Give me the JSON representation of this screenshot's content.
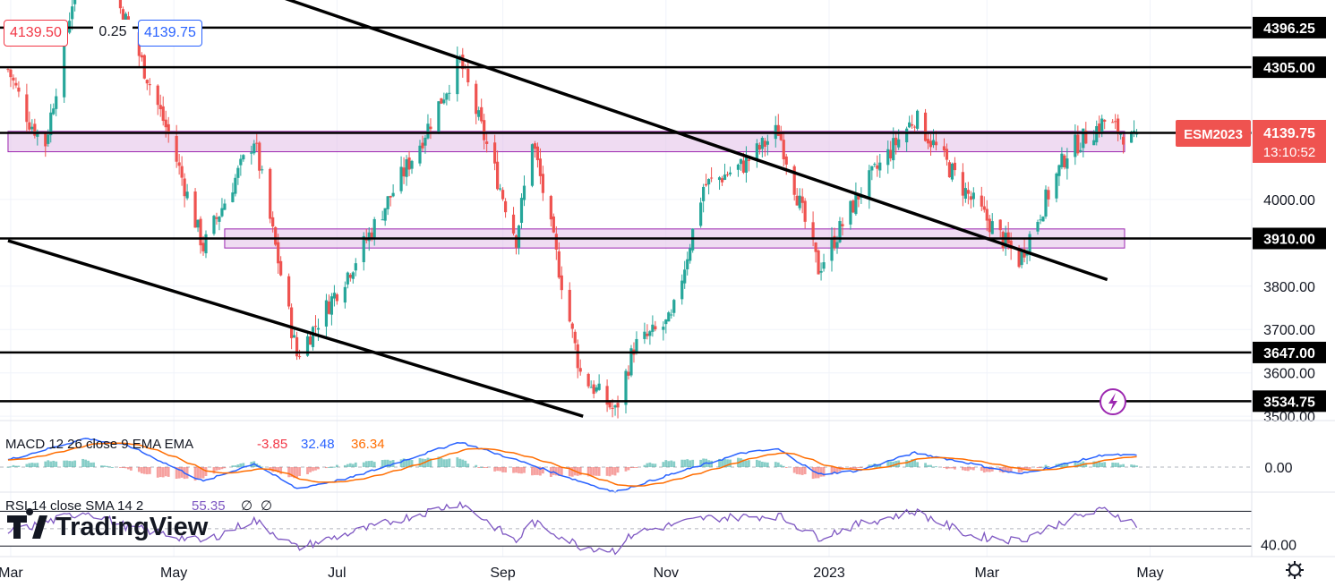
{
  "header": {
    "sell_price": "4139.50",
    "spread": "0.25",
    "buy_price": "4139.75"
  },
  "symbol_tag": {
    "label": "ESM2023",
    "price": "4139.75",
    "countdown": "13:10:52"
  },
  "colors": {
    "up": "#26a69a",
    "down": "#ef5350",
    "zone_fill": "#e1bee7",
    "zone_border": "#9c27b0",
    "tag_bg": "#ef5350",
    "macd_line": "#2962ff",
    "signal_line": "#ff6d00",
    "rsi_line": "#7e57c2"
  },
  "brand": {
    "name": "TradingView"
  },
  "chart_data": {
    "type": "candlestick",
    "price_axis": {
      "range": [
        3490,
        4460
      ],
      "ticks": [
        "4000.00",
        "3800.00",
        "3700.00",
        "3600.00",
        "3500.00"
      ]
    },
    "levels": [
      {
        "label": "4396.25",
        "value": 4396.25
      },
      {
        "label": "4305.00",
        "value": 4305.0
      },
      {
        "label": "4153.50",
        "value": 4153.5
      },
      {
        "label": "3910.00",
        "value": 3910.0
      },
      {
        "label": "3647.00",
        "value": 3647.0
      },
      {
        "label": "3534.75",
        "value": 3534.75
      }
    ],
    "zones": [
      {
        "from": 4110,
        "to": 4157,
        "start": "2022-02-28",
        "end": "2023-04-30"
      },
      {
        "from": 3888,
        "to": 3932,
        "start": "2022-05-20",
        "end": "2023-04-30"
      }
    ],
    "trendlines": [
      {
        "start": [
          "2022-04-15",
          4585
        ],
        "end": [
          "2023-04-15",
          3815
        ]
      },
      {
        "start": [
          "2022-02-28",
          3905
        ],
        "end": [
          "2022-10-01",
          3500
        ]
      }
    ],
    "time_axis": [
      "Mar",
      "May",
      "Jul",
      "Sep",
      "Nov",
      "2023",
      "Mar",
      "May"
    ],
    "price_path": [
      [
        "2022-02-28",
        4300
      ],
      [
        "2022-03-08",
        4180
      ],
      [
        "2022-03-14",
        4130
      ],
      [
        "2022-03-29",
        4620
      ],
      [
        "2022-04-14",
        4400
      ],
      [
        "2022-04-29",
        4150
      ],
      [
        "2022-05-12",
        3890
      ],
      [
        "2022-05-31",
        4140
      ],
      [
        "2022-06-16",
        3640
      ],
      [
        "2022-07-06",
        3840
      ],
      [
        "2022-08-01",
        4130
      ],
      [
        "2022-08-16",
        4320
      ],
      [
        "2022-09-06",
        3910
      ],
      [
        "2022-09-12",
        4140
      ],
      [
        "2022-09-30",
        3600
      ],
      [
        "2022-10-13",
        3510
      ],
      [
        "2022-10-20",
        3660
      ],
      [
        "2022-11-03",
        3720
      ],
      [
        "2022-11-15",
        4030
      ],
      [
        "2022-11-30",
        4080
      ],
      [
        "2022-12-13",
        4160
      ],
      [
        "2022-12-28",
        3840
      ],
      [
        "2023-01-12",
        4010
      ],
      [
        "2023-02-02",
        4190
      ],
      [
        "2023-02-23",
        4000
      ],
      [
        "2023-03-13",
        3860
      ],
      [
        "2023-03-31",
        4110
      ],
      [
        "2023-04-14",
        4180
      ],
      [
        "2023-04-26",
        4130
      ]
    ],
    "macd": {
      "label": "MACD 12 26 close 9 EMA EMA",
      "histogram": "-3.85",
      "macd": "32.48",
      "signal": "36.34",
      "axis_tick": "0.00",
      "range": [
        -60,
        120
      ],
      "path": [
        [
          "2022-02-28",
          20
        ],
        [
          "2022-03-29",
          80
        ],
        [
          "2022-04-14",
          60
        ],
        [
          "2022-05-12",
          -40
        ],
        [
          "2022-05-31",
          10
        ],
        [
          "2022-06-16",
          -60
        ],
        [
          "2022-07-06",
          -30
        ],
        [
          "2022-08-16",
          70
        ],
        [
          "2022-09-06",
          20
        ],
        [
          "2022-09-30",
          -40
        ],
        [
          "2022-10-13",
          -70
        ],
        [
          "2022-11-03",
          -20
        ],
        [
          "2022-11-30",
          40
        ],
        [
          "2022-12-13",
          50
        ],
        [
          "2022-12-28",
          -20
        ],
        [
          "2023-01-12",
          -10
        ],
        [
          "2023-02-02",
          40
        ],
        [
          "2023-02-23",
          10
        ],
        [
          "2023-03-13",
          -20
        ],
        [
          "2023-03-31",
          10
        ],
        [
          "2023-04-14",
          35
        ],
        [
          "2023-04-26",
          32
        ]
      ]
    },
    "rsi": {
      "label": "RSI 14 close SMA 14 2",
      "value": "55.35",
      "extra": [
        "∅",
        "∅"
      ],
      "axis_tick": "40.00",
      "range": [
        20,
        90
      ],
      "path": [
        [
          "2022-02-28",
          45
        ],
        [
          "2022-03-29",
          70
        ],
        [
          "2022-04-14",
          52
        ],
        [
          "2022-05-12",
          35
        ],
        [
          "2022-05-31",
          60
        ],
        [
          "2022-06-16",
          28
        ],
        [
          "2022-07-06",
          45
        ],
        [
          "2022-08-16",
          80
        ],
        [
          "2022-09-06",
          35
        ],
        [
          "2022-09-12",
          58
        ],
        [
          "2022-09-30",
          30
        ],
        [
          "2022-10-13",
          25
        ],
        [
          "2022-10-20",
          45
        ],
        [
          "2022-11-15",
          62
        ],
        [
          "2022-12-13",
          65
        ],
        [
          "2022-12-28",
          40
        ],
        [
          "2023-01-12",
          55
        ],
        [
          "2023-02-02",
          70
        ],
        [
          "2023-02-23",
          42
        ],
        [
          "2023-03-13",
          36
        ],
        [
          "2023-03-31",
          60
        ],
        [
          "2023-04-14",
          72
        ],
        [
          "2023-04-26",
          55
        ]
      ]
    }
  }
}
